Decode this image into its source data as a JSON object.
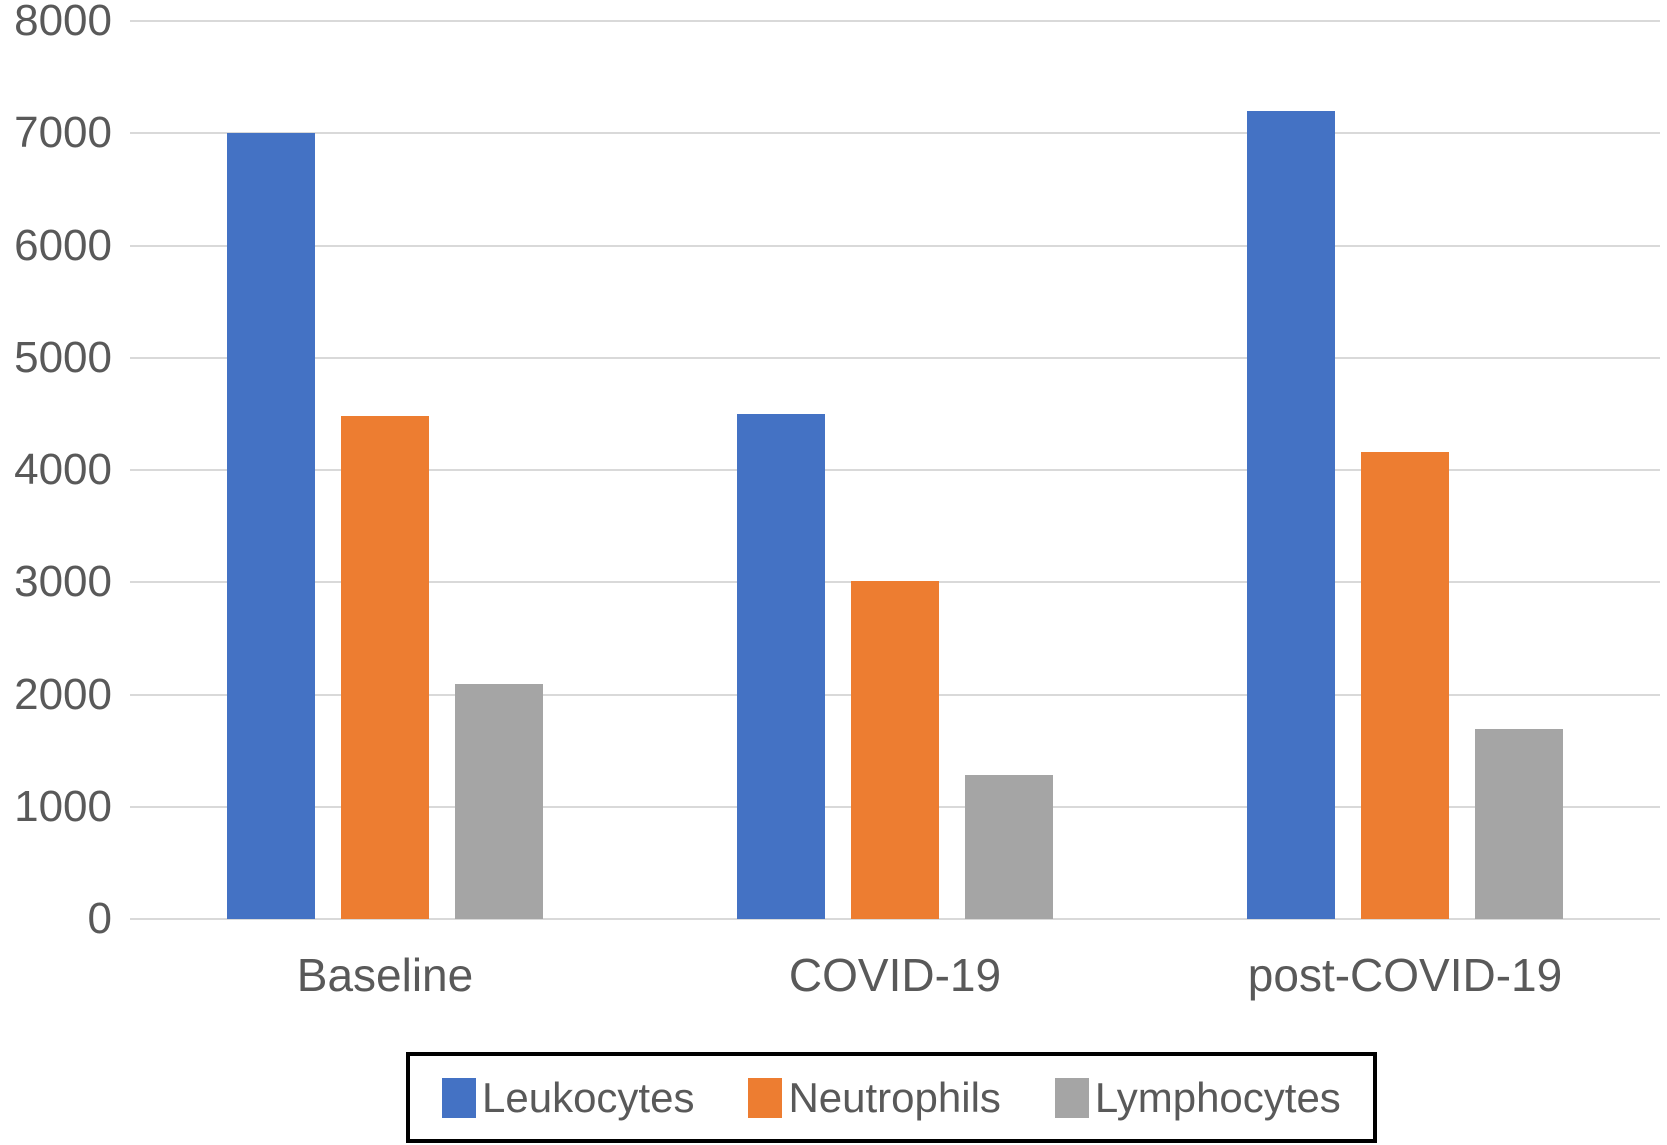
{
  "chart_data": {
    "type": "bar",
    "title": "",
    "xlabel": "",
    "ylabel": "",
    "categories": [
      "Baseline",
      "COVID-19",
      "post-COVID-19"
    ],
    "series": [
      {
        "name": "Leukocytes",
        "color": "#4472C4",
        "values": [
          7000,
          4500,
          7200
        ]
      },
      {
        "name": "Neutrophils",
        "color": "#ED7D31",
        "values": [
          4480,
          3010,
          4160
        ]
      },
      {
        "name": "Lymphocytes",
        "color": "#A5A5A5",
        "values": [
          2090,
          1280,
          1690
        ]
      }
    ],
    "ylim": [
      0,
      8000
    ],
    "y_ticks": [
      0,
      1000,
      2000,
      3000,
      4000,
      5000,
      6000,
      7000,
      8000
    ],
    "grid": "horizontal",
    "gridline_color": "#D9D9D9",
    "axis_text_color": "#595959",
    "background_color": "#FFFFFF",
    "legend_position": "bottom",
    "legend_border_color": "#000000"
  }
}
